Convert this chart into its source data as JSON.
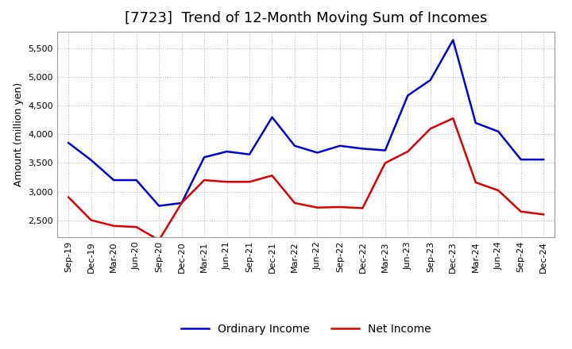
{
  "title": "[7723]  Trend of 12-Month Moving Sum of Incomes",
  "ylabel": "Amount (million yen)",
  "x_labels": [
    "Sep-19",
    "Dec-19",
    "Mar-20",
    "Jun-20",
    "Sep-20",
    "Dec-20",
    "Mar-21",
    "Jun-21",
    "Sep-21",
    "Dec-21",
    "Mar-22",
    "Jun-22",
    "Sep-22",
    "Dec-22",
    "Mar-23",
    "Jun-23",
    "Sep-23",
    "Dec-23",
    "Mar-24",
    "Jun-24",
    "Sep-24",
    "Dec-24"
  ],
  "ordinary_income": [
    3850,
    3550,
    3200,
    3200,
    2750,
    2800,
    3600,
    3700,
    3650,
    4300,
    3800,
    3680,
    3800,
    3750,
    3720,
    4680,
    4950,
    5650,
    4200,
    4050,
    3560,
    3560
  ],
  "net_income": [
    2900,
    2500,
    2400,
    2380,
    2150,
    2800,
    3200,
    3170,
    3170,
    3280,
    2800,
    2720,
    2730,
    2710,
    3500,
    3700,
    4100,
    4280,
    3160,
    3020,
    2650,
    2600
  ],
  "ordinary_color": "#0000dd",
  "net_color": "#dd0000",
  "background_color": "#ffffff",
  "plot_bg_color": "#ffffff",
  "grid_color": "#bbbbbb",
  "ylim": [
    2200,
    5800
  ],
  "yticks": [
    2500,
    3000,
    3500,
    4000,
    4500,
    5000,
    5500
  ],
  "line_width": 1.8,
  "title_fontsize": 13,
  "axis_fontsize": 9,
  "tick_fontsize": 8,
  "legend_fontsize": 10
}
